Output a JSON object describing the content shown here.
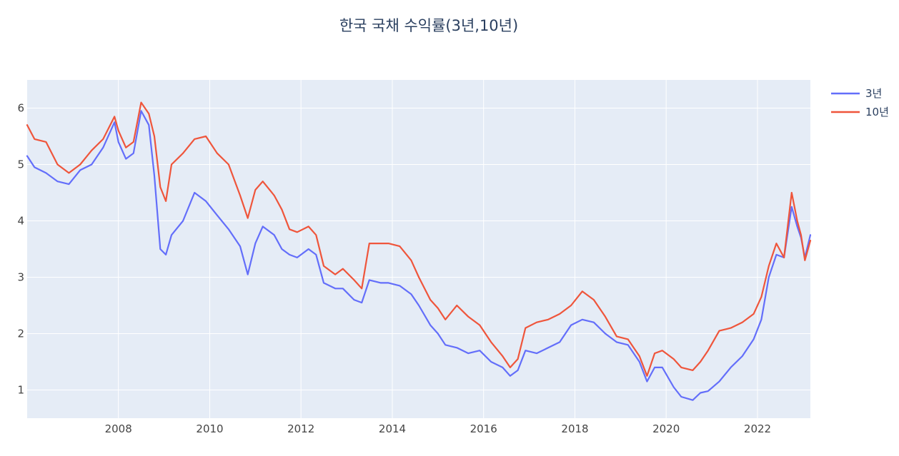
{
  "chart_data": {
    "type": "line",
    "title": "한국 국채 수익률(3년,10년)",
    "xlabel": "",
    "ylabel": "",
    "x_ticks": [
      "2008",
      "2010",
      "2012",
      "2014",
      "2016",
      "2018",
      "2020",
      "2022"
    ],
    "y_ticks": [
      "1",
      "2",
      "3",
      "4",
      "5",
      "6"
    ],
    "xlim": [
      "2006-01-01",
      "2023-02-28"
    ],
    "ylim": [
      0.5,
      6.5
    ],
    "grid": true,
    "legend_position": "top-right",
    "colors": {
      "plot_bg": "#e5ecf6",
      "grid": "#ffffff"
    },
    "series": [
      {
        "name": "3년",
        "color": "#636efa",
        "points": [
          [
            "2006-01-01",
            5.15
          ],
          [
            "2006-03-01",
            4.95
          ],
          [
            "2006-06-01",
            4.85
          ],
          [
            "2006-09-01",
            4.7
          ],
          [
            "2006-12-01",
            4.65
          ],
          [
            "2007-03-01",
            4.9
          ],
          [
            "2007-06-01",
            5.0
          ],
          [
            "2007-09-01",
            5.3
          ],
          [
            "2007-12-01",
            5.75
          ],
          [
            "2008-01-01",
            5.4
          ],
          [
            "2008-03-01",
            5.1
          ],
          [
            "2008-05-01",
            5.2
          ],
          [
            "2008-07-01",
            5.95
          ],
          [
            "2008-09-01",
            5.7
          ],
          [
            "2008-10-15",
            4.8
          ],
          [
            "2008-12-01",
            3.5
          ],
          [
            "2009-01-15",
            3.4
          ],
          [
            "2009-03-01",
            3.75
          ],
          [
            "2009-06-01",
            4.0
          ],
          [
            "2009-09-01",
            4.5
          ],
          [
            "2009-12-01",
            4.35
          ],
          [
            "2010-03-01",
            4.1
          ],
          [
            "2010-06-01",
            3.85
          ],
          [
            "2010-09-01",
            3.55
          ],
          [
            "2010-11-01",
            3.05
          ],
          [
            "2011-01-01",
            3.6
          ],
          [
            "2011-03-01",
            3.9
          ],
          [
            "2011-06-01",
            3.75
          ],
          [
            "2011-08-01",
            3.5
          ],
          [
            "2011-10-01",
            3.4
          ],
          [
            "2011-12-01",
            3.35
          ],
          [
            "2012-03-01",
            3.5
          ],
          [
            "2012-05-01",
            3.4
          ],
          [
            "2012-07-01",
            2.9
          ],
          [
            "2012-10-01",
            2.8
          ],
          [
            "2012-12-01",
            2.8
          ],
          [
            "2013-03-01",
            2.6
          ],
          [
            "2013-05-01",
            2.55
          ],
          [
            "2013-07-01",
            2.95
          ],
          [
            "2013-10-01",
            2.9
          ],
          [
            "2013-12-01",
            2.9
          ],
          [
            "2014-03-01",
            2.85
          ],
          [
            "2014-06-01",
            2.7
          ],
          [
            "2014-08-01",
            2.5
          ],
          [
            "2014-11-01",
            2.15
          ],
          [
            "2015-01-01",
            2.0
          ],
          [
            "2015-03-01",
            1.8
          ],
          [
            "2015-06-01",
            1.75
          ],
          [
            "2015-09-01",
            1.65
          ],
          [
            "2015-12-01",
            1.7
          ],
          [
            "2016-03-01",
            1.5
          ],
          [
            "2016-06-01",
            1.4
          ],
          [
            "2016-08-01",
            1.25
          ],
          [
            "2016-10-01",
            1.35
          ],
          [
            "2016-12-01",
            1.7
          ],
          [
            "2017-03-01",
            1.65
          ],
          [
            "2017-06-01",
            1.75
          ],
          [
            "2017-09-01",
            1.85
          ],
          [
            "2017-12-01",
            2.15
          ],
          [
            "2018-03-01",
            2.25
          ],
          [
            "2018-06-01",
            2.2
          ],
          [
            "2018-09-01",
            2.0
          ],
          [
            "2018-12-01",
            1.85
          ],
          [
            "2019-03-01",
            1.8
          ],
          [
            "2019-06-01",
            1.5
          ],
          [
            "2019-08-01",
            1.15
          ],
          [
            "2019-10-01",
            1.4
          ],
          [
            "2019-12-01",
            1.4
          ],
          [
            "2020-03-01",
            1.05
          ],
          [
            "2020-05-01",
            0.88
          ],
          [
            "2020-08-01",
            0.82
          ],
          [
            "2020-10-01",
            0.95
          ],
          [
            "2020-12-01",
            0.98
          ],
          [
            "2021-03-01",
            1.15
          ],
          [
            "2021-06-01",
            1.4
          ],
          [
            "2021-09-01",
            1.6
          ],
          [
            "2021-12-01",
            1.9
          ],
          [
            "2022-02-01",
            2.25
          ],
          [
            "2022-04-01",
            3.0
          ],
          [
            "2022-06-01",
            3.4
          ],
          [
            "2022-08-01",
            3.35
          ],
          [
            "2022-10-01",
            4.25
          ],
          [
            "2022-11-15",
            3.9
          ],
          [
            "2022-12-15",
            3.7
          ],
          [
            "2023-01-15",
            3.35
          ],
          [
            "2023-02-28",
            3.75
          ]
        ]
      },
      {
        "name": "10년",
        "color": "#ef553b",
        "points": [
          [
            "2006-01-01",
            5.7
          ],
          [
            "2006-03-01",
            5.45
          ],
          [
            "2006-06-01",
            5.4
          ],
          [
            "2006-09-01",
            5.0
          ],
          [
            "2006-12-01",
            4.85
          ],
          [
            "2007-03-01",
            5.0
          ],
          [
            "2007-06-01",
            5.25
          ],
          [
            "2007-09-01",
            5.45
          ],
          [
            "2007-12-01",
            5.85
          ],
          [
            "2008-01-01",
            5.6
          ],
          [
            "2008-03-01",
            5.3
          ],
          [
            "2008-05-01",
            5.4
          ],
          [
            "2008-07-01",
            6.1
          ],
          [
            "2008-09-01",
            5.9
          ],
          [
            "2008-10-15",
            5.5
          ],
          [
            "2008-12-01",
            4.6
          ],
          [
            "2009-01-15",
            4.35
          ],
          [
            "2009-03-01",
            5.0
          ],
          [
            "2009-06-01",
            5.2
          ],
          [
            "2009-09-01",
            5.45
          ],
          [
            "2009-12-01",
            5.5
          ],
          [
            "2010-03-01",
            5.2
          ],
          [
            "2010-06-01",
            5.0
          ],
          [
            "2010-09-01",
            4.45
          ],
          [
            "2010-11-01",
            4.05
          ],
          [
            "2011-01-01",
            4.55
          ],
          [
            "2011-03-01",
            4.7
          ],
          [
            "2011-06-01",
            4.45
          ],
          [
            "2011-08-01",
            4.2
          ],
          [
            "2011-10-01",
            3.85
          ],
          [
            "2011-12-01",
            3.8
          ],
          [
            "2012-03-01",
            3.9
          ],
          [
            "2012-05-01",
            3.75
          ],
          [
            "2012-07-01",
            3.2
          ],
          [
            "2012-10-01",
            3.05
          ],
          [
            "2012-12-01",
            3.15
          ],
          [
            "2013-03-01",
            2.95
          ],
          [
            "2013-05-01",
            2.8
          ],
          [
            "2013-07-01",
            3.6
          ],
          [
            "2013-10-01",
            3.6
          ],
          [
            "2013-12-01",
            3.6
          ],
          [
            "2014-03-01",
            3.55
          ],
          [
            "2014-06-01",
            3.3
          ],
          [
            "2014-08-01",
            3.0
          ],
          [
            "2014-11-01",
            2.6
          ],
          [
            "2015-01-01",
            2.45
          ],
          [
            "2015-03-01",
            2.25
          ],
          [
            "2015-06-01",
            2.5
          ],
          [
            "2015-09-01",
            2.3
          ],
          [
            "2015-12-01",
            2.15
          ],
          [
            "2016-03-01",
            1.85
          ],
          [
            "2016-06-01",
            1.6
          ],
          [
            "2016-08-01",
            1.4
          ],
          [
            "2016-10-01",
            1.55
          ],
          [
            "2016-12-01",
            2.1
          ],
          [
            "2017-03-01",
            2.2
          ],
          [
            "2017-06-01",
            2.25
          ],
          [
            "2017-09-01",
            2.35
          ],
          [
            "2017-12-01",
            2.5
          ],
          [
            "2018-03-01",
            2.75
          ],
          [
            "2018-06-01",
            2.6
          ],
          [
            "2018-09-01",
            2.3
          ],
          [
            "2018-12-01",
            1.95
          ],
          [
            "2019-03-01",
            1.9
          ],
          [
            "2019-06-01",
            1.6
          ],
          [
            "2019-08-01",
            1.25
          ],
          [
            "2019-10-01",
            1.65
          ],
          [
            "2019-12-01",
            1.7
          ],
          [
            "2020-03-01",
            1.55
          ],
          [
            "2020-05-01",
            1.4
          ],
          [
            "2020-08-01",
            1.35
          ],
          [
            "2020-10-01",
            1.5
          ],
          [
            "2020-12-01",
            1.7
          ],
          [
            "2021-03-01",
            2.05
          ],
          [
            "2021-06-01",
            2.1
          ],
          [
            "2021-09-01",
            2.2
          ],
          [
            "2021-12-01",
            2.35
          ],
          [
            "2022-02-01",
            2.65
          ],
          [
            "2022-04-01",
            3.2
          ],
          [
            "2022-06-01",
            3.6
          ],
          [
            "2022-08-01",
            3.35
          ],
          [
            "2022-10-01",
            4.5
          ],
          [
            "2022-11-15",
            4.0
          ],
          [
            "2022-12-15",
            3.75
          ],
          [
            "2023-01-15",
            3.3
          ],
          [
            "2023-02-28",
            3.65
          ]
        ]
      }
    ]
  }
}
